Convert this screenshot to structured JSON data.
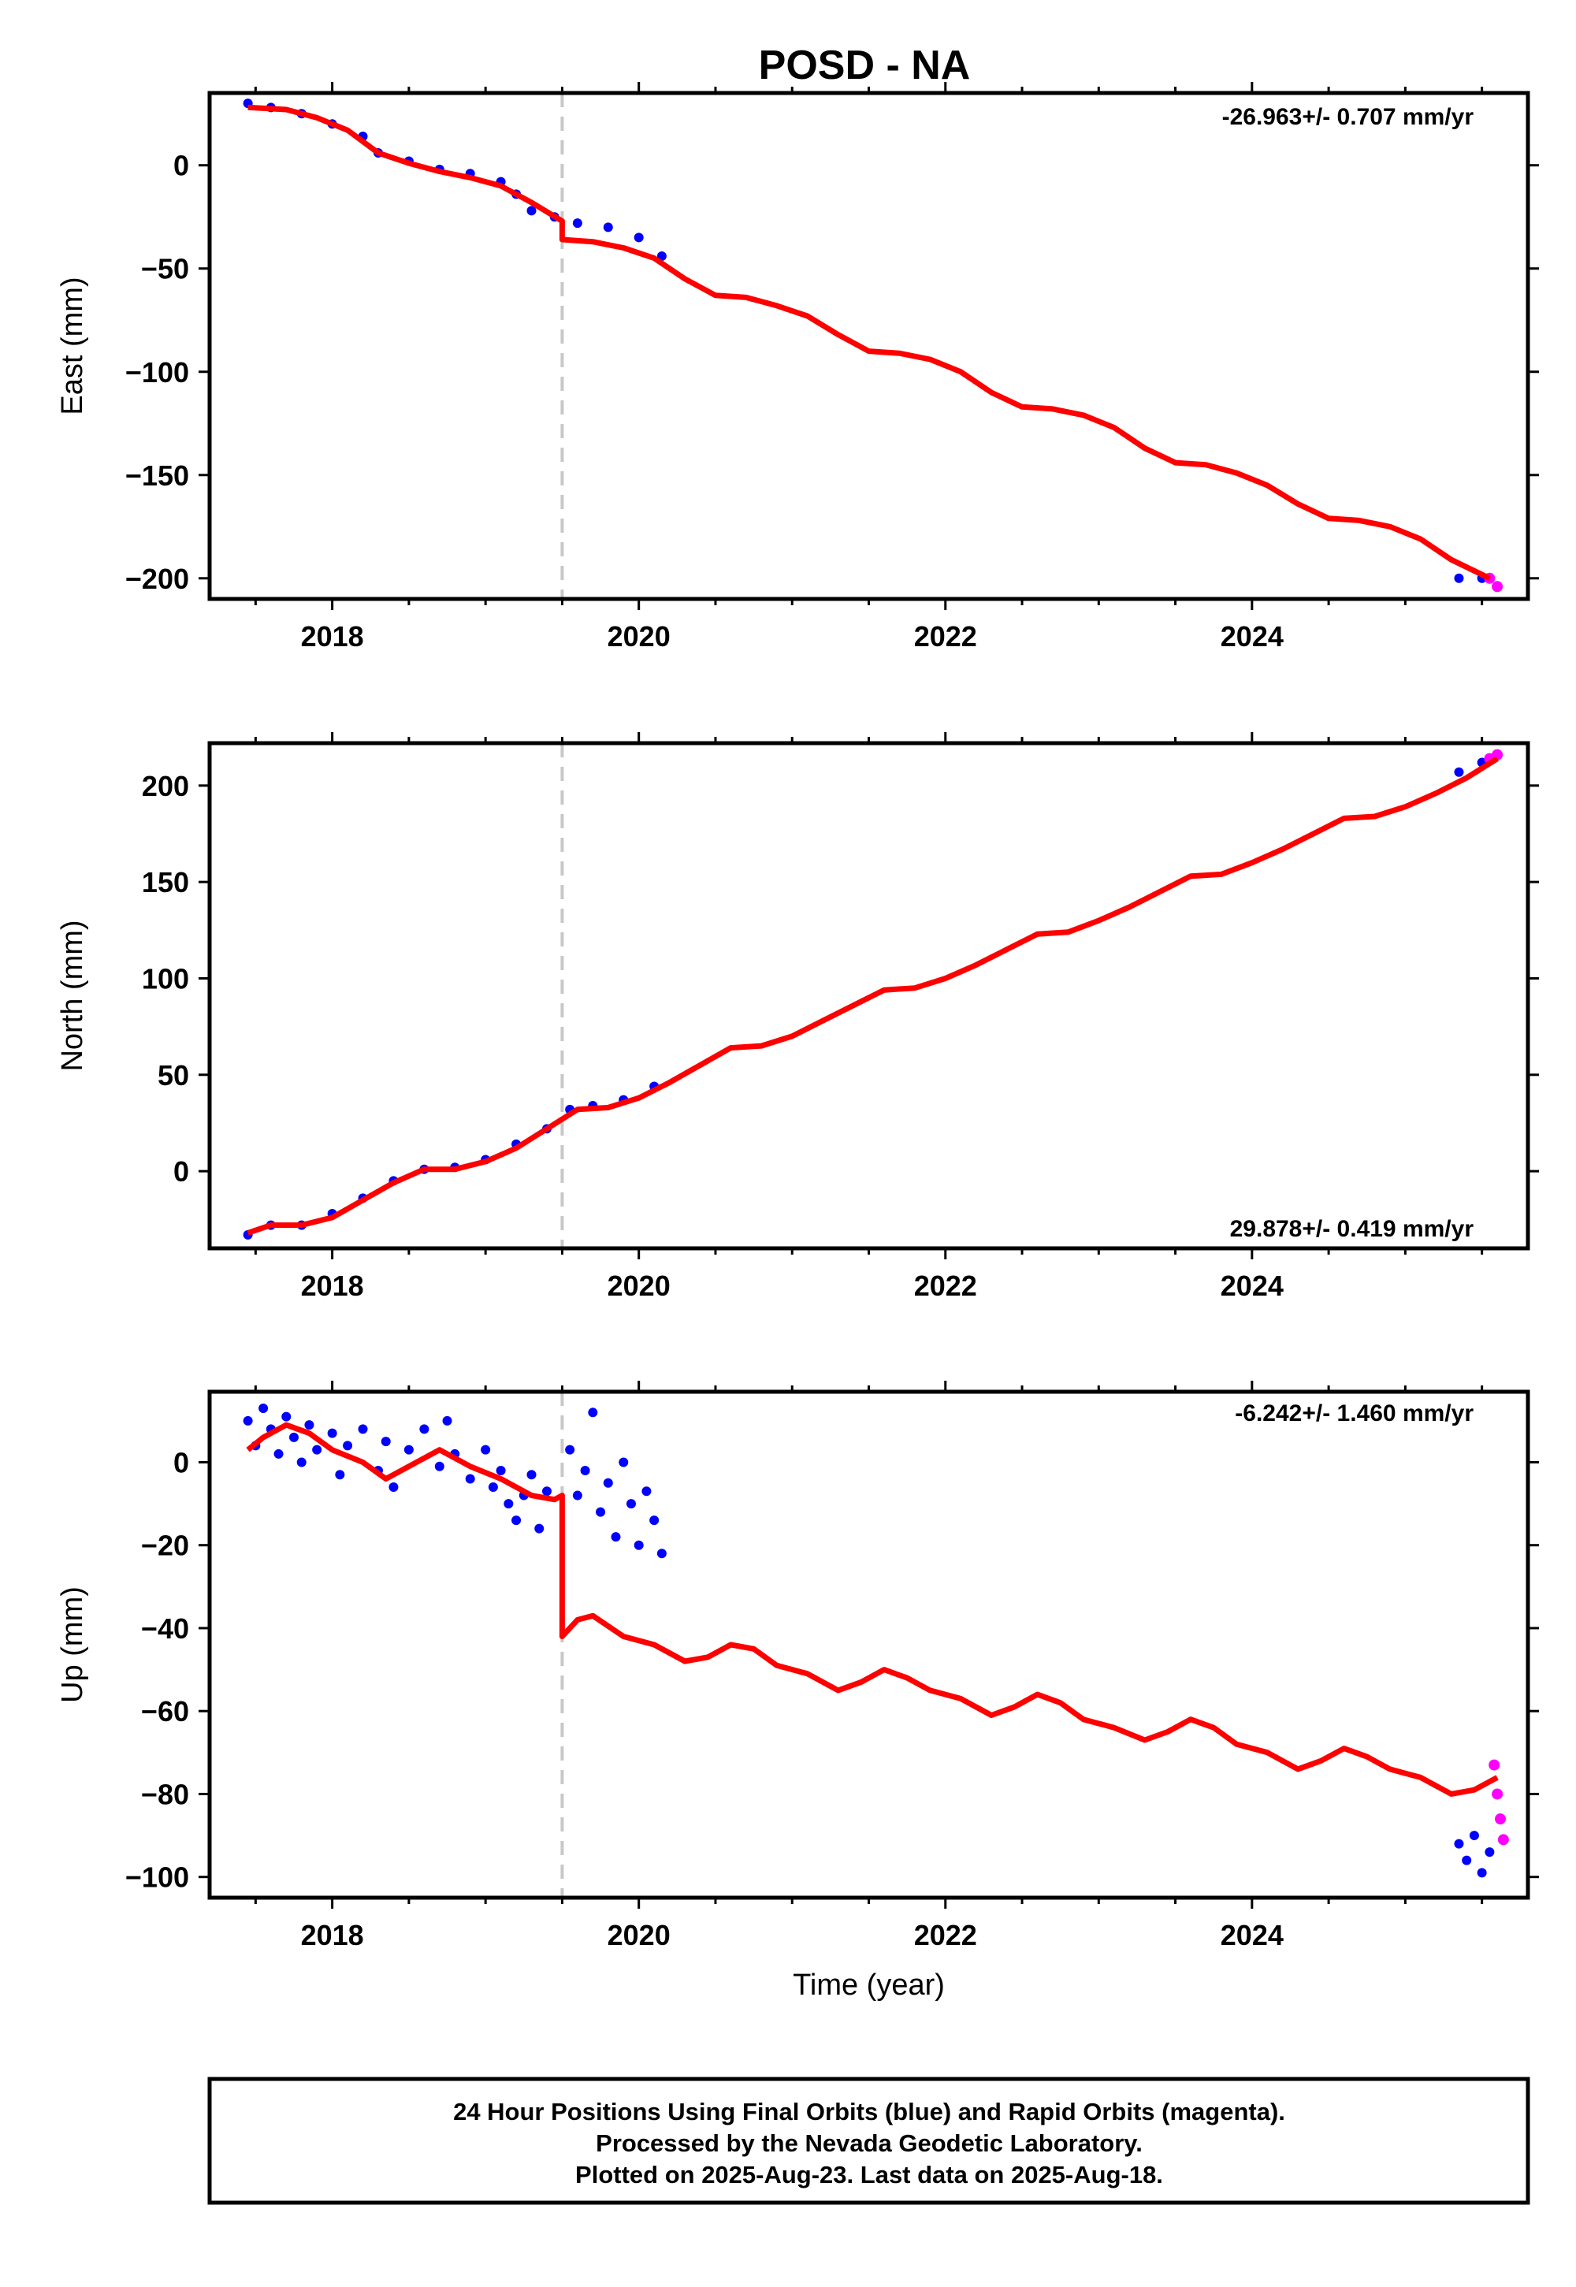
{
  "title": "POSD - NA",
  "colors": {
    "final": "#0000ff",
    "rapid": "#ff00ff",
    "model": "#ff0000",
    "event": "#c8c8c8"
  },
  "chart_data": [
    {
      "type": "scatter",
      "component": "east",
      "ylabel": "East (mm)",
      "rate": "-26.963+/- 0.707 mm/yr",
      "xlim": [
        2017.2,
        2025.8
      ],
      "ylim": [
        -210,
        35
      ],
      "yticks": [
        0,
        -50,
        -100,
        -150,
        -200
      ],
      "xticks": [
        2018,
        2020,
        2022,
        2024
      ],
      "event_line": 2019.5,
      "final_series": [
        [
          2017.45,
          30
        ],
        [
          2017.6,
          28
        ],
        [
          2017.8,
          25
        ],
        [
          2018.0,
          20
        ],
        [
          2018.2,
          14
        ],
        [
          2018.3,
          6
        ],
        [
          2018.5,
          2
        ],
        [
          2018.7,
          -2
        ],
        [
          2018.9,
          -4
        ],
        [
          2019.1,
          -8
        ],
        [
          2019.2,
          -14
        ],
        [
          2019.3,
          -22
        ],
        [
          2019.45,
          -25
        ],
        [
          2019.6,
          -28
        ],
        [
          2019.8,
          -30
        ],
        [
          2020.0,
          -35
        ],
        [
          2020.15,
          -44
        ],
        [
          2025.35,
          -200
        ],
        [
          2025.5,
          -200
        ]
      ],
      "rapid_series": [
        [
          2025.55,
          -200
        ],
        [
          2025.6,
          -204
        ]
      ],
      "model": [
        [
          2017.45,
          28
        ],
        [
          2017.7,
          27
        ],
        [
          2017.9,
          23
        ],
        [
          2018.1,
          17
        ],
        [
          2018.3,
          6
        ],
        [
          2018.5,
          1
        ],
        [
          2018.7,
          -3
        ],
        [
          2018.9,
          -6
        ],
        [
          2019.1,
          -10
        ],
        [
          2019.3,
          -18
        ],
        [
          2019.5,
          -27
        ],
        [
          2019.5,
          -36
        ],
        [
          2019.7,
          -37
        ],
        [
          2019.9,
          -40
        ],
        [
          2020.1,
          -45
        ],
        [
          2020.3,
          -55
        ],
        [
          2020.5,
          -63
        ],
        [
          2020.7,
          -64
        ],
        [
          2020.9,
          -68
        ],
        [
          2021.1,
          -73
        ],
        [
          2021.3,
          -82
        ],
        [
          2021.5,
          -90
        ],
        [
          2021.7,
          -91
        ],
        [
          2021.9,
          -94
        ],
        [
          2022.1,
          -100
        ],
        [
          2022.3,
          -110
        ],
        [
          2022.5,
          -117
        ],
        [
          2022.7,
          -118
        ],
        [
          2022.9,
          -121
        ],
        [
          2023.1,
          -127
        ],
        [
          2023.3,
          -137
        ],
        [
          2023.5,
          -144
        ],
        [
          2023.7,
          -145
        ],
        [
          2023.9,
          -149
        ],
        [
          2024.1,
          -155
        ],
        [
          2024.3,
          -164
        ],
        [
          2024.5,
          -171
        ],
        [
          2024.7,
          -172
        ],
        [
          2024.9,
          -175
        ],
        [
          2025.1,
          -181
        ],
        [
          2025.3,
          -191
        ],
        [
          2025.55,
          -200
        ]
      ]
    },
    {
      "type": "scatter",
      "component": "north",
      "ylabel": "North (mm)",
      "rate": "29.878+/- 0.419 mm/yr",
      "xlim": [
        2017.2,
        2025.8
      ],
      "ylim": [
        -40,
        222
      ],
      "yticks": [
        200,
        150,
        100,
        50,
        0
      ],
      "xticks": [
        2018,
        2020,
        2022,
        2024
      ],
      "event_line": 2019.5,
      "final_series": [
        [
          2017.45,
          -33
        ],
        [
          2017.6,
          -28
        ],
        [
          2017.8,
          -28
        ],
        [
          2018.0,
          -22
        ],
        [
          2018.2,
          -14
        ],
        [
          2018.4,
          -5
        ],
        [
          2018.6,
          1
        ],
        [
          2018.8,
          2
        ],
        [
          2019.0,
          6
        ],
        [
          2019.2,
          14
        ],
        [
          2019.4,
          22
        ],
        [
          2019.55,
          32
        ],
        [
          2019.7,
          34
        ],
        [
          2019.9,
          37
        ],
        [
          2020.1,
          44
        ],
        [
          2025.35,
          207
        ],
        [
          2025.5,
          212
        ]
      ],
      "rapid_series": [
        [
          2025.55,
          214
        ],
        [
          2025.6,
          216
        ]
      ],
      "model": [
        [
          2017.45,
          -32
        ],
        [
          2017.6,
          -28
        ],
        [
          2017.8,
          -28
        ],
        [
          2018.0,
          -24
        ],
        [
          2018.2,
          -15
        ],
        [
          2018.4,
          -6
        ],
        [
          2018.6,
          1
        ],
        [
          2018.8,
          1
        ],
        [
          2019.0,
          5
        ],
        [
          2019.2,
          12
        ],
        [
          2019.4,
          22
        ],
        [
          2019.6,
          32
        ],
        [
          2019.8,
          33
        ],
        [
          2020.0,
          38
        ],
        [
          2020.2,
          46
        ],
        [
          2020.4,
          55
        ],
        [
          2020.6,
          64
        ],
        [
          2020.8,
          65
        ],
        [
          2021.0,
          70
        ],
        [
          2021.2,
          78
        ],
        [
          2021.4,
          86
        ],
        [
          2021.6,
          94
        ],
        [
          2021.8,
          95
        ],
        [
          2022.0,
          100
        ],
        [
          2022.2,
          107
        ],
        [
          2022.4,
          115
        ],
        [
          2022.6,
          123
        ],
        [
          2022.8,
          124
        ],
        [
          2023.0,
          130
        ],
        [
          2023.2,
          137
        ],
        [
          2023.4,
          145
        ],
        [
          2023.6,
          153
        ],
        [
          2023.8,
          154
        ],
        [
          2024.0,
          160
        ],
        [
          2024.2,
          167
        ],
        [
          2024.4,
          175
        ],
        [
          2024.6,
          183
        ],
        [
          2024.8,
          184
        ],
        [
          2025.0,
          189
        ],
        [
          2025.2,
          196
        ],
        [
          2025.4,
          204
        ],
        [
          2025.6,
          214
        ]
      ]
    },
    {
      "type": "scatter",
      "component": "up",
      "ylabel": "Up (mm)",
      "xlabel": "Time (year)",
      "rate": "-6.242+/- 1.460 mm/yr",
      "xlim": [
        2017.2,
        2025.8
      ],
      "ylim": [
        -105,
        17
      ],
      "yticks": [
        0,
        -20,
        -40,
        -60,
        -80,
        -100
      ],
      "xticks": [
        2018,
        2020,
        2022,
        2024
      ],
      "event_line": 2019.5,
      "final_series": [
        [
          2017.45,
          10
        ],
        [
          2017.5,
          4
        ],
        [
          2017.55,
          13
        ],
        [
          2017.6,
          8
        ],
        [
          2017.65,
          2
        ],
        [
          2017.7,
          11
        ],
        [
          2017.75,
          6
        ],
        [
          2017.8,
          0
        ],
        [
          2017.85,
          9
        ],
        [
          2017.9,
          3
        ],
        [
          2018.0,
          7
        ],
        [
          2018.05,
          -3
        ],
        [
          2018.1,
          4
        ],
        [
          2018.2,
          8
        ],
        [
          2018.3,
          -2
        ],
        [
          2018.35,
          5
        ],
        [
          2018.4,
          -6
        ],
        [
          2018.5,
          3
        ],
        [
          2018.6,
          8
        ],
        [
          2018.7,
          -1
        ],
        [
          2018.75,
          10
        ],
        [
          2018.8,
          2
        ],
        [
          2018.9,
          -4
        ],
        [
          2019.0,
          3
        ],
        [
          2019.05,
          -6
        ],
        [
          2019.1,
          -2
        ],
        [
          2019.15,
          -10
        ],
        [
          2019.2,
          -14
        ],
        [
          2019.25,
          -8
        ],
        [
          2019.3,
          -3
        ],
        [
          2019.35,
          -16
        ],
        [
          2019.4,
          -7
        ],
        [
          2019.55,
          3
        ],
        [
          2019.6,
          -8
        ],
        [
          2019.65,
          -2
        ],
        [
          2019.7,
          12
        ],
        [
          2019.75,
          -12
        ],
        [
          2019.8,
          -5
        ],
        [
          2019.85,
          -18
        ],
        [
          2019.9,
          0
        ],
        [
          2019.95,
          -10
        ],
        [
          2020.0,
          -20
        ],
        [
          2020.05,
          -7
        ],
        [
          2020.1,
          -14
        ],
        [
          2020.15,
          -22
        ],
        [
          2025.35,
          -92
        ],
        [
          2025.4,
          -96
        ],
        [
          2025.45,
          -90
        ],
        [
          2025.5,
          -99
        ],
        [
          2025.55,
          -94
        ]
      ],
      "rapid_series": [
        [
          2025.58,
          -73
        ],
        [
          2025.6,
          -80
        ],
        [
          2025.62,
          -86
        ],
        [
          2025.64,
          -91
        ]
      ],
      "model": [
        [
          2017.45,
          3
        ],
        [
          2017.55,
          6
        ],
        [
          2017.7,
          9
        ],
        [
          2017.85,
          7
        ],
        [
          2018.0,
          3
        ],
        [
          2018.2,
          0
        ],
        [
          2018.35,
          -4
        ],
        [
          2018.5,
          -1
        ],
        [
          2018.7,
          3
        ],
        [
          2018.9,
          -1
        ],
        [
          2019.1,
          -4
        ],
        [
          2019.3,
          -8
        ],
        [
          2019.45,
          -9
        ],
        [
          2019.5,
          -8
        ],
        [
          2019.5,
          -42
        ],
        [
          2019.6,
          -38
        ],
        [
          2019.7,
          -37
        ],
        [
          2019.9,
          -42
        ],
        [
          2020.1,
          -44
        ],
        [
          2020.3,
          -48
        ],
        [
          2020.45,
          -47
        ],
        [
          2020.6,
          -44
        ],
        [
          2020.75,
          -45
        ],
        [
          2020.9,
          -49
        ],
        [
          2021.1,
          -51
        ],
        [
          2021.3,
          -55
        ],
        [
          2021.45,
          -53
        ],
        [
          2021.6,
          -50
        ],
        [
          2021.75,
          -52
        ],
        [
          2021.9,
          -55
        ],
        [
          2022.1,
          -57
        ],
        [
          2022.3,
          -61
        ],
        [
          2022.45,
          -59
        ],
        [
          2022.6,
          -56
        ],
        [
          2022.75,
          -58
        ],
        [
          2022.9,
          -62
        ],
        [
          2023.1,
          -64
        ],
        [
          2023.3,
          -67
        ],
        [
          2023.45,
          -65
        ],
        [
          2023.6,
          -62
        ],
        [
          2023.75,
          -64
        ],
        [
          2023.9,
          -68
        ],
        [
          2024.1,
          -70
        ],
        [
          2024.3,
          -74
        ],
        [
          2024.45,
          -72
        ],
        [
          2024.6,
          -69
        ],
        [
          2024.75,
          -71
        ],
        [
          2024.9,
          -74
        ],
        [
          2025.1,
          -76
        ],
        [
          2025.3,
          -80
        ],
        [
          2025.45,
          -79
        ],
        [
          2025.6,
          -76
        ]
      ]
    }
  ],
  "footer": {
    "line1": "24 Hour Positions Using Final Orbits (blue) and Rapid Orbits (magenta).",
    "line2": "Processed by the Nevada Geodetic Laboratory.",
    "line3": "Plotted on 2025-Aug-23. Last data on 2025-Aug-18."
  }
}
